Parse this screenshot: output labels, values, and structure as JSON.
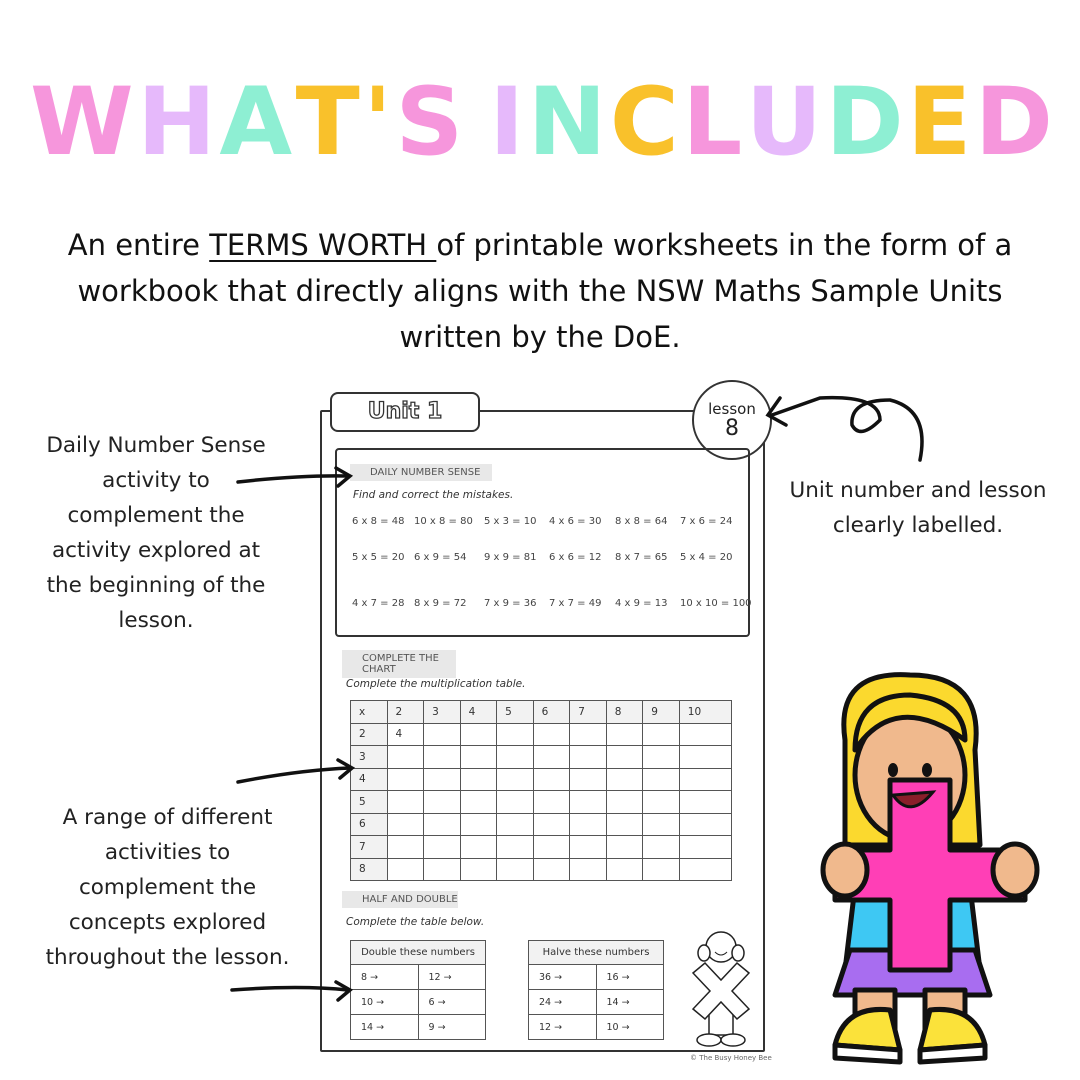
{
  "title": {
    "letters": [
      "W",
      "H",
      "A",
      "T",
      "'",
      "S",
      " ",
      "I",
      "N",
      "C",
      "L",
      "U",
      "D",
      "E",
      "D"
    ]
  },
  "colors": {
    "pink": "#f696dc",
    "lavender": "#e6b9fb",
    "mint": "#8eefd3",
    "yellow": "#f9c12b",
    "plus_magenta": "#ff3fb6"
  },
  "subtitle": {
    "pre": "An entire ",
    "underlined": "TERMS WORTH ",
    "post": "of printable worksheets in the form of a workbook that directly aligns with the NSW Maths Sample Units written by the DoE."
  },
  "notes": {
    "daily": "Daily Number Sense activity to complement the activity explored at the beginning of the lesson.",
    "unit": "Unit number and lesson clearly labelled.",
    "range": "A range of different activities to complement the concepts explored throughout the lesson."
  },
  "worksheet": {
    "unit_label": "Unit 1",
    "lesson_label": "lesson",
    "lesson_number": "8",
    "daily": {
      "label": "DAILY NUMBER SENSE",
      "instruction": "Find and correct the mistakes.",
      "equations": [
        [
          "6 x 8 = 48",
          "10 x 8 = 80",
          "5 x 3 = 10",
          "4 x 6 = 30",
          "8 x 8 = 64",
          "7 x 6 = 24"
        ],
        [
          "5 x 5 = 20",
          "6 x 9  = 54",
          "9 x 9 = 81",
          "6 x 6 = 12",
          "8 x 7 = 65",
          "5 x 4 = 20"
        ],
        [
          "4 x 7 = 28",
          "8 x 9 = 72",
          "7 x 9 = 36",
          "7 x 7 = 49",
          "4 x 9 = 13",
          "10 x 10 = 100"
        ]
      ]
    },
    "chart": {
      "label": "COMPLETE THE CHART",
      "instruction": "Complete the multiplication table.",
      "header": [
        "x",
        "2",
        "3",
        "4",
        "5",
        "6",
        "7",
        "8",
        "9",
        "10"
      ],
      "rows": [
        [
          "2",
          "4"
        ],
        [
          "3"
        ],
        [
          "4"
        ],
        [
          "5"
        ],
        [
          "6"
        ],
        [
          "7"
        ],
        [
          "8"
        ]
      ]
    },
    "half_double": {
      "label": "HALF AND DOUBLE",
      "instruction": "Complete the table below.",
      "double_title": "Double these numbers",
      "double": [
        [
          "8 →",
          "12 →"
        ],
        [
          "10 →",
          "6 →"
        ],
        [
          "14 →",
          "9 →"
        ]
      ],
      "halve_title": "Halve these numbers",
      "halve": [
        [
          "36 →",
          "16 →"
        ],
        [
          "24 →",
          "14 →"
        ],
        [
          "12 →",
          "10 →"
        ]
      ]
    },
    "credit": "© The Busy Honey Bee"
  }
}
